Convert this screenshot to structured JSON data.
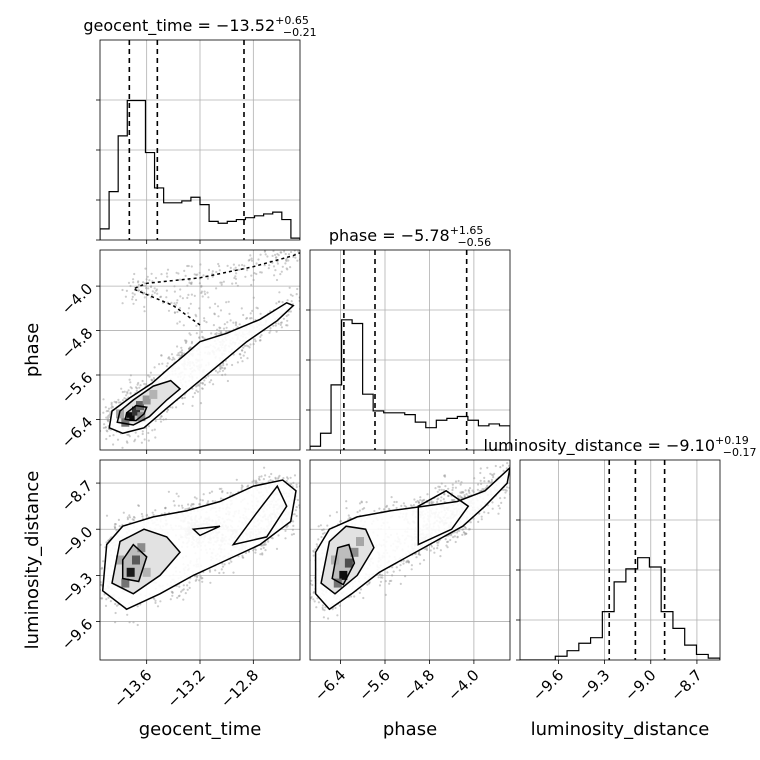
{
  "chart_data": {
    "type": "corner",
    "parameters": [
      {
        "name": "geocent_time",
        "axis_label": "geocent_time",
        "title": {
          "prefix": "geocent_time = ",
          "median": "−13.52",
          "plus": "+0.65",
          "minus": "−0.21"
        },
        "range": [
          -13.95,
          -12.45
        ],
        "ticks": [
          -13.6,
          -13.2,
          -12.8
        ],
        "tick_labels": [
          "−13.6",
          "−13.2",
          "−12.8"
        ],
        "quantiles": [
          -13.73,
          -13.52,
          -12.87
        ],
        "hist_values": [
          0.06,
          0.26,
          0.56,
          0.75,
          0.75,
          0.47,
          0.28,
          0.2,
          0.2,
          0.21,
          0.23,
          0.19,
          0.1,
          0.09,
          0.1,
          0.11,
          0.12,
          0.13,
          0.14,
          0.15,
          0.11,
          0.01
        ]
      },
      {
        "name": "phase",
        "axis_label": "phase",
        "title": {
          "prefix": "phase = ",
          "median": "−5.78",
          "plus": "+1.65",
          "minus": "−0.56"
        },
        "range": [
          -6.95,
          -3.35
        ],
        "ticks": [
          -6.4,
          -5.6,
          -4.8,
          -4.0
        ],
        "tick_labels": [
          "−6.4",
          "−5.6",
          "−4.8",
          "−4.0"
        ],
        "quantiles": [
          -6.34,
          -5.78,
          -4.13
        ],
        "hist_values": [
          0.02,
          0.09,
          0.35,
          0.7,
          0.68,
          0.3,
          0.21,
          0.2,
          0.2,
          0.19,
          0.15,
          0.12,
          0.16,
          0.17,
          0.18,
          0.16,
          0.13,
          0.14,
          0.13
        ]
      },
      {
        "name": "luminosity_distance",
        "axis_label": "luminosity_distance",
        "title": {
          "prefix": "luminosity_distance = ",
          "median": "−9.10",
          "plus": "+0.19",
          "minus": "−0.17"
        },
        "range": [
          -9.85,
          -8.55
        ],
        "ticks": [
          -9.6,
          -9.3,
          -9.0,
          -8.7
        ],
        "tick_labels": [
          "−9.6",
          "−9.3",
          "−9.0",
          "−8.7"
        ],
        "quantiles": [
          -9.27,
          -9.1,
          -8.91
        ],
        "hist_values": [
          0.0,
          0.0,
          0.0,
          0.02,
          0.05,
          0.09,
          0.12,
          0.26,
          0.42,
          0.49,
          0.55,
          0.5,
          0.26,
          0.17,
          0.08,
          0.03,
          0.01
        ]
      }
    ],
    "pairs": [
      {
        "x": "geocent_time",
        "y": "phase",
        "density_peak": {
          "x": -13.7,
          "y": -6.3
        },
        "density_cells": [
          {
            "x": -13.72,
            "y": -6.35,
            "w": 0.95
          },
          {
            "x": -13.68,
            "y": -6.25,
            "w": 0.8
          },
          {
            "x": -13.65,
            "y": -6.15,
            "w": 0.6
          },
          {
            "x": -13.76,
            "y": -6.45,
            "w": 0.55
          },
          {
            "x": -13.6,
            "y": -6.05,
            "w": 0.4
          },
          {
            "x": -13.8,
            "y": -6.3,
            "w": 0.35
          },
          {
            "x": -13.55,
            "y": -5.95,
            "w": 0.3
          },
          {
            "x": -13.64,
            "y": -6.35,
            "w": 0.45
          }
        ],
        "contour_outer": [
          [
            -13.88,
            -6.55
          ],
          [
            -13.78,
            -6.65
          ],
          [
            -13.62,
            -6.55
          ],
          [
            -13.45,
            -6.2
          ],
          [
            -13.25,
            -5.8
          ],
          [
            -13.05,
            -5.4
          ],
          [
            -12.85,
            -5.0
          ],
          [
            -12.62,
            -4.62
          ],
          [
            -12.5,
            -4.35
          ],
          [
            -12.55,
            -4.3
          ],
          [
            -12.75,
            -4.6
          ],
          [
            -13.0,
            -4.85
          ],
          [
            -13.2,
            -5.0
          ],
          [
            -13.32,
            -5.25
          ],
          [
            -13.42,
            -5.45
          ],
          [
            -13.56,
            -5.75
          ],
          [
            -13.72,
            -6.0
          ],
          [
            -13.86,
            -6.25
          ],
          [
            -13.88,
            -6.55
          ]
        ],
        "contour_mid": [
          [
            -13.82,
            -6.45
          ],
          [
            -13.7,
            -6.5
          ],
          [
            -13.58,
            -6.35
          ],
          [
            -13.45,
            -6.05
          ],
          [
            -13.35,
            -5.85
          ],
          [
            -13.42,
            -5.7
          ],
          [
            -13.55,
            -5.8
          ],
          [
            -13.7,
            -6.05
          ],
          [
            -13.8,
            -6.25
          ],
          [
            -13.82,
            -6.45
          ]
        ],
        "contour_inner": [
          [
            -13.76,
            -6.4
          ],
          [
            -13.68,
            -6.42
          ],
          [
            -13.62,
            -6.3
          ],
          [
            -13.6,
            -6.18
          ],
          [
            -13.68,
            -6.15
          ],
          [
            -13.75,
            -6.28
          ],
          [
            -13.76,
            -6.4
          ]
        ],
        "tail_curve": [
          [
            -13.2,
            -4.7
          ],
          [
            -13.4,
            -4.35
          ],
          [
            -13.7,
            -4.05
          ],
          [
            -13.6,
            -3.95
          ],
          [
            -13.2,
            -3.85
          ],
          [
            -12.8,
            -3.65
          ],
          [
            -12.5,
            -3.45
          ],
          [
            -12.45,
            -3.4
          ]
        ]
      },
      {
        "x": "geocent_time",
        "y": "luminosity_distance",
        "density_peak": {
          "x": -13.72,
          "y": -9.25
        },
        "density_cells": [
          {
            "x": -13.72,
            "y": -9.28,
            "w": 0.9
          },
          {
            "x": -13.68,
            "y": -9.2,
            "w": 0.65
          },
          {
            "x": -13.76,
            "y": -9.35,
            "w": 0.55
          },
          {
            "x": -13.64,
            "y": -9.12,
            "w": 0.45
          },
          {
            "x": -13.8,
            "y": -9.2,
            "w": 0.35
          },
          {
            "x": -13.6,
            "y": -9.28,
            "w": 0.3
          }
        ],
        "contour_outer": [
          [
            -13.93,
            -9.4
          ],
          [
            -13.75,
            -9.52
          ],
          [
            -13.5,
            -9.42
          ],
          [
            -13.25,
            -9.3
          ],
          [
            -13.0,
            -9.2
          ],
          [
            -12.75,
            -9.1
          ],
          [
            -12.52,
            -8.95
          ],
          [
            -12.48,
            -8.75
          ],
          [
            -12.58,
            -8.68
          ],
          [
            -12.8,
            -8.72
          ],
          [
            -13.05,
            -8.82
          ],
          [
            -13.3,
            -8.88
          ],
          [
            -13.55,
            -8.92
          ],
          [
            -13.78,
            -8.98
          ],
          [
            -13.9,
            -9.1
          ],
          [
            -13.93,
            -9.4
          ]
        ],
        "contour_mid": [
          [
            -13.86,
            -9.35
          ],
          [
            -13.7,
            -9.42
          ],
          [
            -13.5,
            -9.3
          ],
          [
            -13.35,
            -9.15
          ],
          [
            -13.45,
            -9.05
          ],
          [
            -13.62,
            -9.0
          ],
          [
            -13.8,
            -9.08
          ],
          [
            -13.86,
            -9.35
          ]
        ],
        "contour_inner": [
          [
            -13.78,
            -9.32
          ],
          [
            -13.66,
            -9.34
          ],
          [
            -13.6,
            -9.18
          ],
          [
            -13.7,
            -9.1
          ],
          [
            -13.78,
            -9.2
          ],
          [
            -13.78,
            -9.32
          ]
        ],
        "extra_loops": [
          [
            [
              -12.95,
              -9.1
            ],
            [
              -12.78,
              -8.9
            ],
            [
              -12.62,
              -8.72
            ],
            [
              -12.55,
              -8.85
            ],
            [
              -12.7,
              -9.05
            ],
            [
              -12.95,
              -9.1
            ]
          ],
          [
            [
              -13.25,
              -9.0
            ],
            [
              -13.05,
              -8.98
            ],
            [
              -13.2,
              -9.04
            ],
            [
              -13.25,
              -9.0
            ]
          ]
        ]
      },
      {
        "x": "phase",
        "y": "luminosity_distance",
        "density_peak": {
          "x": -6.35,
          "y": -9.25
        },
        "density_cells": [
          {
            "x": -6.35,
            "y": -9.3,
            "w": 0.95
          },
          {
            "x": -6.25,
            "y": -9.22,
            "w": 0.7
          },
          {
            "x": -6.45,
            "y": -9.35,
            "w": 0.55
          },
          {
            "x": -6.15,
            "y": -9.15,
            "w": 0.45
          },
          {
            "x": -6.05,
            "y": -9.08,
            "w": 0.35
          },
          {
            "x": -6.5,
            "y": -9.2,
            "w": 0.3
          }
        ],
        "contour_outer": [
          [
            -6.85,
            -9.42
          ],
          [
            -6.6,
            -9.52
          ],
          [
            -6.2,
            -9.42
          ],
          [
            -5.7,
            -9.28
          ],
          [
            -5.2,
            -9.18
          ],
          [
            -4.7,
            -9.08
          ],
          [
            -4.2,
            -8.98
          ],
          [
            -3.8,
            -8.85
          ],
          [
            -3.4,
            -8.7
          ],
          [
            -3.35,
            -8.6
          ],
          [
            -3.8,
            -8.75
          ],
          [
            -4.3,
            -8.82
          ],
          [
            -4.9,
            -8.85
          ],
          [
            -5.5,
            -8.88
          ],
          [
            -6.1,
            -8.92
          ],
          [
            -6.6,
            -9.0
          ],
          [
            -6.85,
            -9.15
          ],
          [
            -6.85,
            -9.42
          ]
        ],
        "contour_mid": [
          [
            -6.75,
            -9.35
          ],
          [
            -6.5,
            -9.42
          ],
          [
            -6.1,
            -9.3
          ],
          [
            -5.8,
            -9.12
          ],
          [
            -5.95,
            -9.0
          ],
          [
            -6.3,
            -8.98
          ],
          [
            -6.6,
            -9.08
          ],
          [
            -6.75,
            -9.35
          ]
        ],
        "contour_inner": [
          [
            -6.55,
            -9.32
          ],
          [
            -6.35,
            -9.36
          ],
          [
            -6.15,
            -9.22
          ],
          [
            -6.25,
            -9.1
          ],
          [
            -6.45,
            -9.12
          ],
          [
            -6.55,
            -9.32
          ]
        ],
        "extra_loops": [
          [
            [
              -5.0,
              -9.1
            ],
            [
              -4.4,
              -9.0
            ],
            [
              -4.1,
              -8.85
            ],
            [
              -4.5,
              -8.75
            ],
            [
              -5.0,
              -8.85
            ],
            [
              -5.0,
              -9.1
            ]
          ]
        ]
      }
    ]
  }
}
